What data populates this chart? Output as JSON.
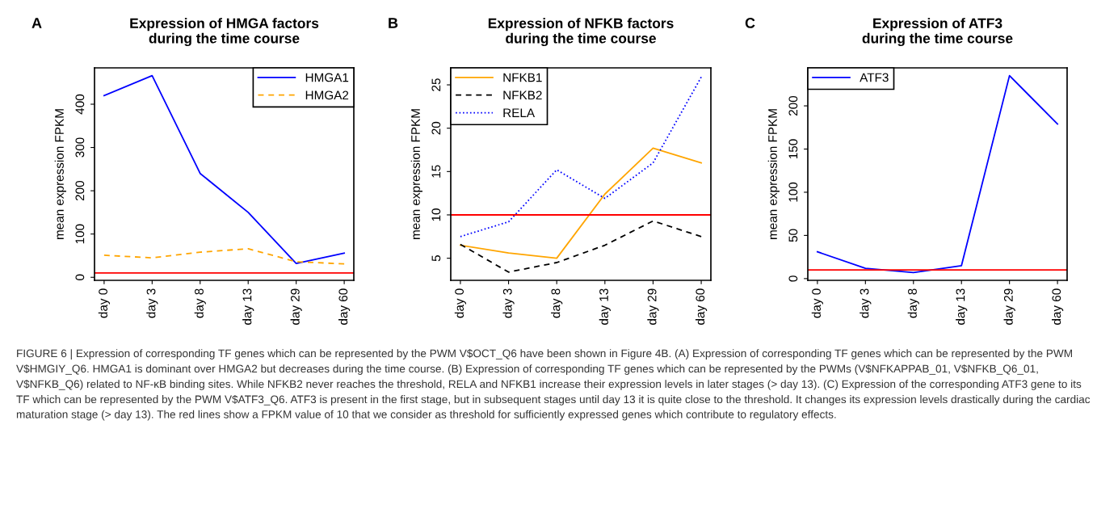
{
  "chart_data": [
    {
      "type": "line",
      "title": "Expression of HMGA factors\nduring the time course",
      "ylabel": "mean expression FPKM",
      "categories": [
        "day 0",
        "day 3",
        "day 8",
        "day 13",
        "day 29",
        "day 60"
      ],
      "series": [
        {
          "name": "HMGA1",
          "color": "#0000ff",
          "line_style": "solid",
          "values": [
            420,
            466,
            240,
            150,
            32,
            56
          ]
        },
        {
          "name": "HMGA2",
          "color": "#ffa500",
          "line_style": "dashed",
          "values": [
            51,
            45,
            58,
            66,
            36,
            31
          ]
        }
      ],
      "ylim": [
        -7,
        484
      ],
      "yticks": [
        0,
        100,
        200,
        300,
        400
      ],
      "ref_lines": [
        {
          "axis": "y",
          "value": 10,
          "color": "#ff0000"
        }
      ],
      "legend": "top right",
      "grid": false,
      "marker": "none",
      "annotations": [
        "A"
      ]
    },
    {
      "type": "line",
      "title": "Expression of NFKB factors\nduring the time course",
      "ylabel": "mean expression FPKM",
      "categories": [
        "day 0",
        "day 3",
        "day 8",
        "day 13",
        "day 29",
        "day 60"
      ],
      "series": [
        {
          "name": "NFKB1",
          "color": "#ffa500",
          "line_style": "solid",
          "values": [
            6.5,
            5.6,
            5.0,
            12.4,
            17.7,
            16.0
          ]
        },
        {
          "name": "NFKB2",
          "color": "#000000",
          "line_style": "dashed",
          "values": [
            6.6,
            3.4,
            4.5,
            6.5,
            9.3,
            7.5
          ]
        },
        {
          "name": "RELA",
          "color": "#0000ff",
          "line_style": "dotted",
          "values": [
            7.5,
            9.2,
            15.2,
            11.9,
            16.0,
            25.9
          ]
        }
      ],
      "ylim": [
        2.45,
        26.96
      ],
      "yticks": [
        5,
        10,
        15,
        20,
        25
      ],
      "ref_lines": [
        {
          "axis": "y",
          "value": 10,
          "color": "#ff0000"
        }
      ],
      "legend": "top left",
      "grid": false,
      "marker": "none",
      "annotations": [
        "B"
      ]
    },
    {
      "type": "line",
      "title": "Expression of ATF3\nduring the time course",
      "ylabel": "mean expression FPKM",
      "categories": [
        "day 0",
        "day 3",
        "day 8",
        "day 13",
        "day 29",
        "day 60"
      ],
      "series": [
        {
          "name": "ATF3",
          "color": "#0000ff",
          "line_style": "solid",
          "values": [
            31,
            12,
            7,
            15,
            235,
            179
          ]
        }
      ],
      "ylim": [
        -2,
        244
      ],
      "yticks": [
        0,
        50,
        100,
        150,
        200
      ],
      "ref_lines": [
        {
          "axis": "y",
          "value": 10,
          "color": "#ff0000"
        }
      ],
      "legend": "top left",
      "grid": false,
      "marker": "none",
      "annotations": [
        "C",
        "FIGURE 6 | Expression of corresponding TF genes which can be represented by the PWM V$OCT_Q6 have been shown in Figure 4B. (A) Expression of corresponding TF genes which can be represented by the PWM V$HMGIY_Q6. HMGA1 is dominant over HMGA2 but decreases during the time course. (B) Expression of corresponding TF genes which can be represented by the PWMs (V$NFKAPPAB_01, V$NFKB_Q6_01, V$NFKB_Q6) related to NF-κB binding sites. While NFKB2 never reaches the threshold, RELA and NFKB1 increase their expression levels in later stages (> day 13). (C) Expression of the corresponding ATF3 gene to its TF which can be represented by the PWM V$ATF3_Q6. ATF3 is present in the first stage, but in subsequent stages until day 13 it is quite close to the threshold. It changes its expression levels drastically during the cardiac maturation stage (> day 13). The red lines show a FPKM value of 10 that we consider as threshold for sufficiently expressed genes which contribute to regulatory effects."
      ]
    }
  ]
}
